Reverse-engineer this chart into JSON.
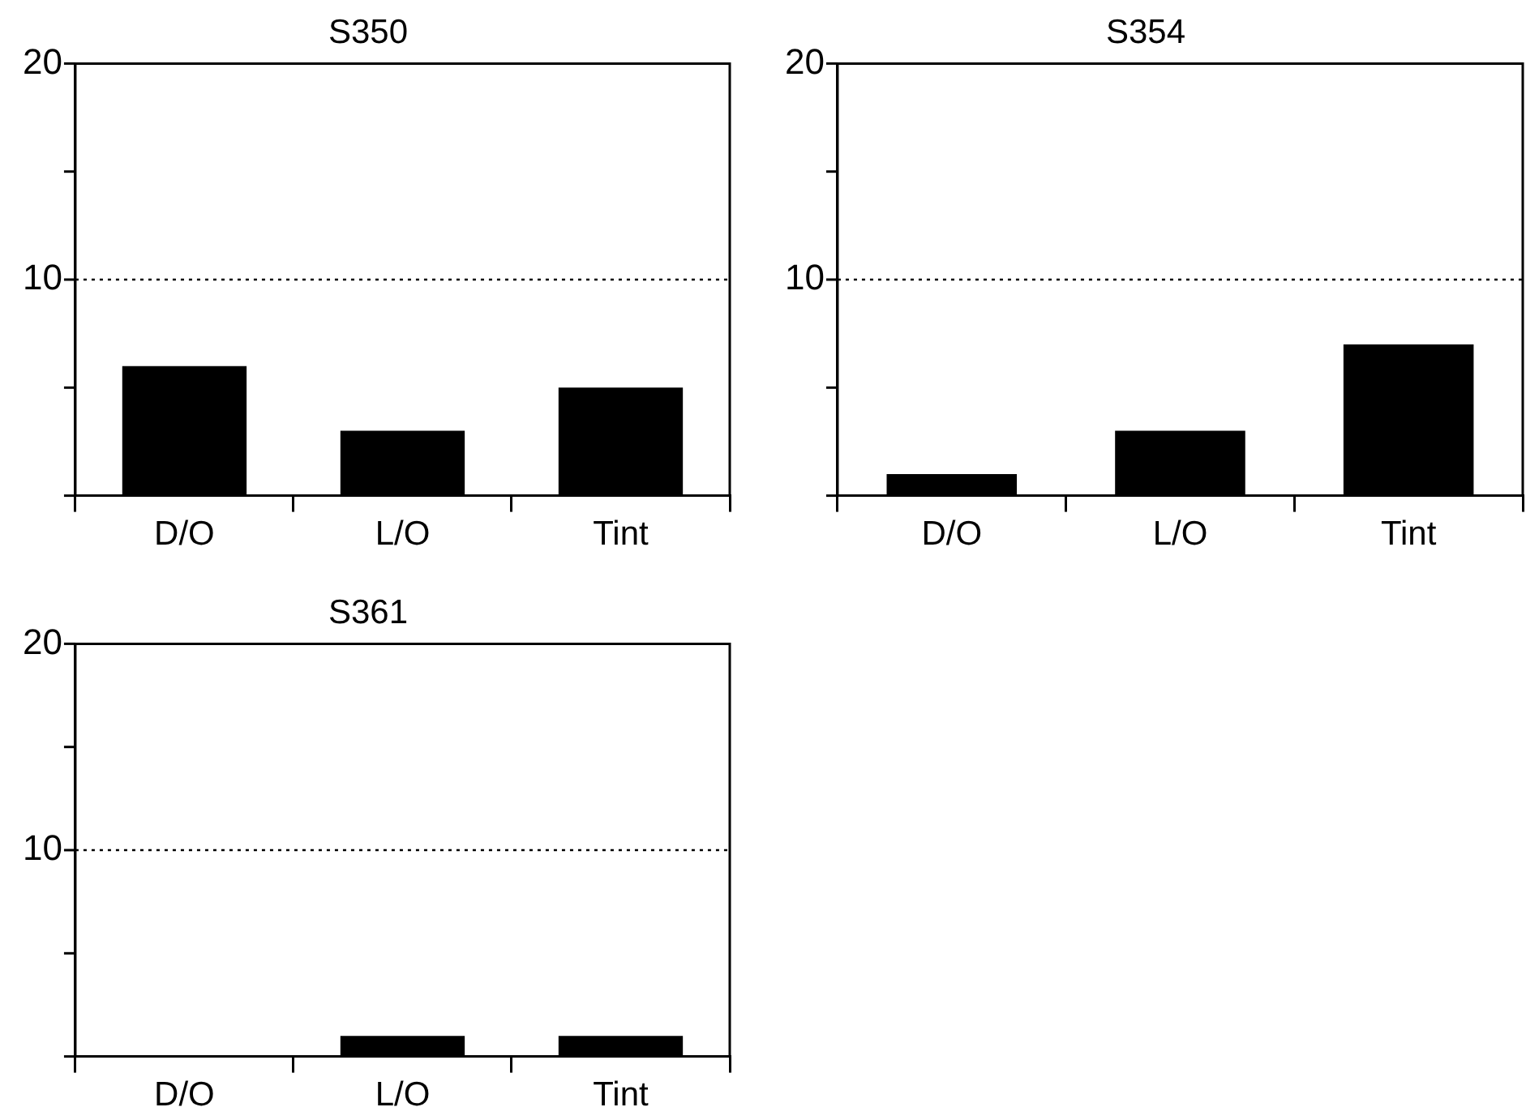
{
  "chart_data": [
    {
      "type": "bar",
      "title": "S350",
      "categories": [
        "D/O",
        "L/O",
        "Tint"
      ],
      "values": [
        6,
        3,
        5
      ],
      "color": "#000000",
      "ylim": [
        0,
        20
      ],
      "yticks": [
        {
          "value": 0,
          "label": null
        },
        {
          "value": 5,
          "label": null
        },
        {
          "value": 10,
          "label": "10"
        },
        {
          "value": 15,
          "label": null
        },
        {
          "value": 20,
          "label": "20"
        }
      ],
      "grid": false,
      "legend": false,
      "ref_lines": [
        {
          "axis": "y",
          "value": 10,
          "line_style": "dotted",
          "color": "#000000"
        }
      ]
    },
    {
      "type": "bar",
      "title": "S354",
      "categories": [
        "D/O",
        "L/O",
        "Tint"
      ],
      "values": [
        1,
        3,
        7
      ],
      "color": "#000000",
      "ylim": [
        0,
        20
      ],
      "yticks": [
        {
          "value": 0,
          "label": null
        },
        {
          "value": 5,
          "label": null
        },
        {
          "value": 10,
          "label": "10"
        },
        {
          "value": 15,
          "label": null
        },
        {
          "value": 20,
          "label": "20"
        }
      ],
      "grid": false,
      "legend": false,
      "ref_lines": [
        {
          "axis": "y",
          "value": 10,
          "line_style": "dotted",
          "color": "#000000"
        }
      ]
    },
    {
      "type": "bar",
      "title": "S361",
      "categories": [
        "D/O",
        "L/O",
        "Tint"
      ],
      "values": [
        0,
        1,
        1
      ],
      "color": "#000000",
      "ylim": [
        0,
        20
      ],
      "yticks": [
        {
          "value": 0,
          "label": null
        },
        {
          "value": 5,
          "label": null
        },
        {
          "value": 10,
          "label": "10"
        },
        {
          "value": 15,
          "label": null
        },
        {
          "value": 20,
          "label": "20"
        }
      ],
      "grid": false,
      "legend": false,
      "ref_lines": [
        {
          "axis": "y",
          "value": 10,
          "line_style": "dotted",
          "color": "#000000"
        }
      ]
    }
  ]
}
